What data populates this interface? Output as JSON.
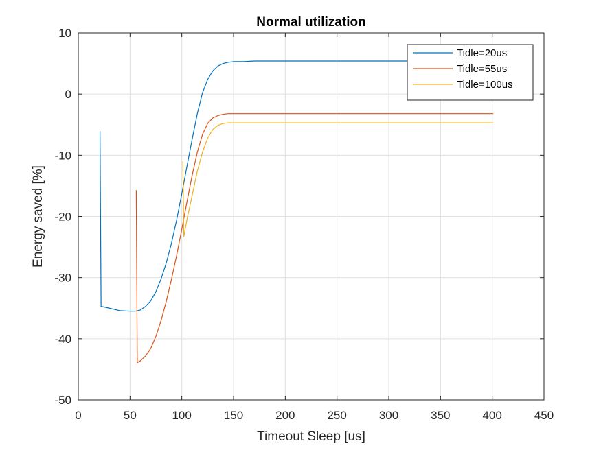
{
  "chart_data": {
    "type": "line",
    "title": "Normal utilization",
    "xlabel": "Timeout Sleep [us]",
    "ylabel": "Energy saved [%]",
    "xlim": [
      0,
      450
    ],
    "ylim": [
      -50,
      10
    ],
    "xticks": [
      0,
      50,
      100,
      150,
      200,
      250,
      300,
      350,
      400,
      450
    ],
    "yticks": [
      -50,
      -40,
      -30,
      -20,
      -10,
      0,
      10
    ],
    "grid": true,
    "legend_position": "top-right",
    "series": [
      {
        "name": "Tidle=20us",
        "color": "#0072BD",
        "points": [
          [
            21,
            -6.1
          ],
          [
            22,
            -34.7
          ],
          [
            30,
            -35.0
          ],
          [
            40,
            -35.4
          ],
          [
            50,
            -35.5
          ],
          [
            55,
            -35.5
          ],
          [
            60,
            -35.3
          ],
          [
            65,
            -34.7
          ],
          [
            70,
            -33.8
          ],
          [
            75,
            -32.3
          ],
          [
            80,
            -30.2
          ],
          [
            85,
            -27.6
          ],
          [
            90,
            -24.4
          ],
          [
            95,
            -20.6
          ],
          [
            100,
            -16.3
          ],
          [
            105,
            -11.8
          ],
          [
            110,
            -7.4
          ],
          [
            115,
            -3.2
          ],
          [
            120,
            0.2
          ],
          [
            125,
            2.4
          ],
          [
            130,
            3.8
          ],
          [
            135,
            4.6
          ],
          [
            140,
            5.0
          ],
          [
            145,
            5.2
          ],
          [
            150,
            5.3
          ],
          [
            160,
            5.3
          ],
          [
            170,
            5.4
          ],
          [
            200,
            5.4
          ],
          [
            250,
            5.4
          ],
          [
            300,
            5.4
          ],
          [
            350,
            5.4
          ],
          [
            401,
            5.4
          ]
        ]
      },
      {
        "name": "Tidle=55us",
        "color": "#D95319",
        "points": [
          [
            56,
            -15.7
          ],
          [
            57,
            -43.9
          ],
          [
            60,
            -43.6
          ],
          [
            65,
            -42.8
          ],
          [
            70,
            -41.6
          ],
          [
            75,
            -39.6
          ],
          [
            80,
            -37.0
          ],
          [
            85,
            -33.9
          ],
          [
            90,
            -30.3
          ],
          [
            95,
            -26.4
          ],
          [
            100,
            -22.1
          ],
          [
            105,
            -17.6
          ],
          [
            110,
            -13.3
          ],
          [
            115,
            -9.5
          ],
          [
            120,
            -6.6
          ],
          [
            125,
            -4.8
          ],
          [
            130,
            -3.9
          ],
          [
            135,
            -3.5
          ],
          [
            140,
            -3.3
          ],
          [
            145,
            -3.2
          ],
          [
            150,
            -3.2
          ],
          [
            200,
            -3.2
          ],
          [
            250,
            -3.2
          ],
          [
            300,
            -3.2
          ],
          [
            350,
            -3.2
          ],
          [
            401,
            -3.2
          ]
        ]
      },
      {
        "name": "Tidle=100us",
        "color": "#EDB120",
        "points": [
          [
            101,
            -11.0
          ],
          [
            102,
            -23.3
          ],
          [
            105,
            -20.5
          ],
          [
            110,
            -16.6
          ],
          [
            115,
            -12.6
          ],
          [
            120,
            -9.5
          ],
          [
            125,
            -7.2
          ],
          [
            130,
            -5.8
          ],
          [
            135,
            -5.1
          ],
          [
            140,
            -4.8
          ],
          [
            145,
            -4.7
          ],
          [
            150,
            -4.7
          ],
          [
            200,
            -4.7
          ],
          [
            250,
            -4.7
          ],
          [
            300,
            -4.7
          ],
          [
            350,
            -4.7
          ],
          [
            401,
            -4.7
          ]
        ]
      }
    ]
  }
}
